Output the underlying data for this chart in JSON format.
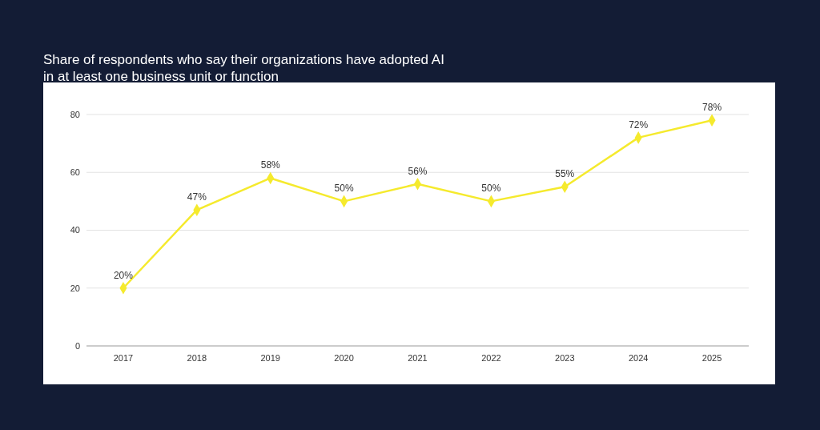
{
  "chart_data": {
    "type": "line",
    "title": "Share of respondents who say their organizations have adopted AI in at least one business unit or function",
    "categories": [
      "2017",
      "2018",
      "2019",
      "2020",
      "2021",
      "2022",
      "2023",
      "2024",
      "2025"
    ],
    "series": [
      {
        "color": "#f5ea2d",
        "values": [
          20,
          47,
          58,
          50,
          56,
          50,
          55,
          72,
          78
        ],
        "value_labels": [
          "20%",
          "47%",
          "58%",
          "50%",
          "56%",
          "50%",
          "55%",
          "72%",
          "78%"
        ]
      }
    ],
    "ylim": [
      0,
      80
    ],
    "yticks": [
      0,
      20,
      40,
      60,
      80
    ],
    "grid": "y",
    "marker": "diamond",
    "line_style": "solid"
  }
}
